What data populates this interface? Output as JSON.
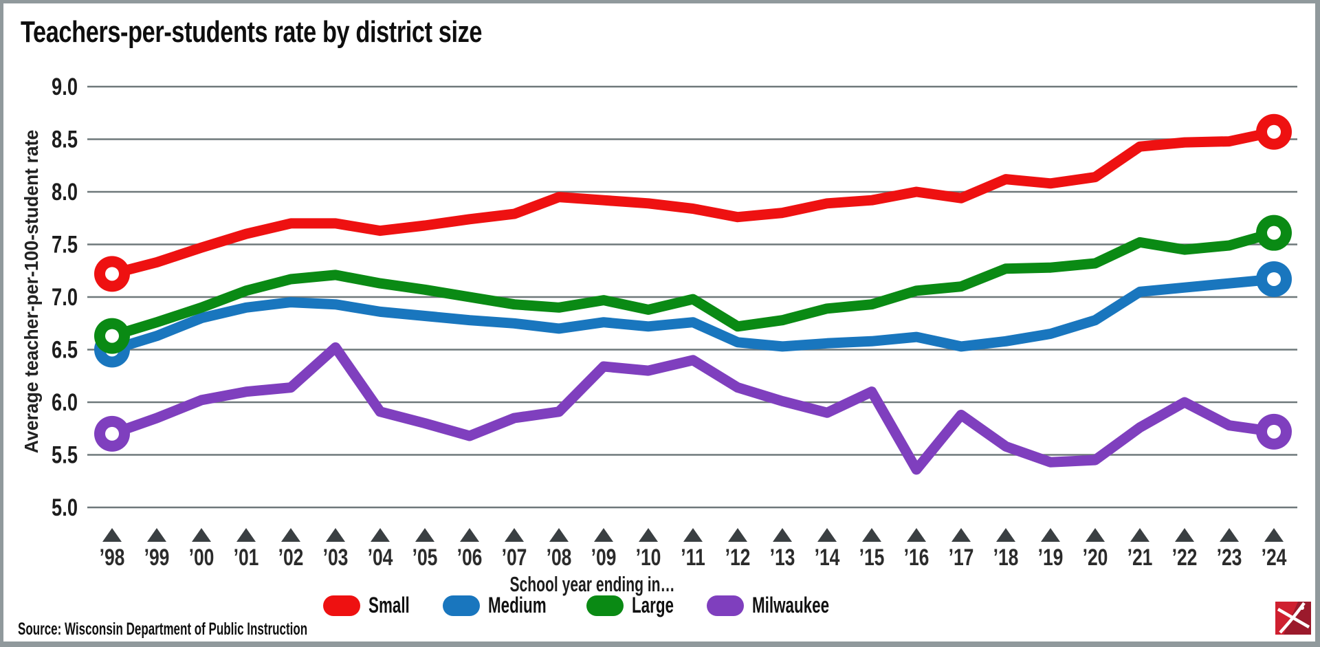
{
  "title": "Teachers-per-students rate by district size",
  "y_axis": {
    "label": "Average teacher-per-100-student rate"
  },
  "x_axis": {
    "title": "School year ending in…"
  },
  "legend": {
    "items": [
      {
        "label": "Small",
        "color": "#ee1111"
      },
      {
        "label": "Medium",
        "color": "#1976be"
      },
      {
        "label": "Large",
        "color": "#0a8a14"
      },
      {
        "label": "Milwaukee",
        "color": "#7f3fbe"
      }
    ]
  },
  "source": "Source: Wisconsin Department of Public Instruction",
  "logo": {
    "name": "pickaxe-logo",
    "bg": "#cf2030",
    "dark": "#9b1a2c",
    "pick": "#ffffff"
  },
  "colors": {
    "grid": "#6e787a",
    "axis_text": "#1d1d1d",
    "year_text": "#2b2b2b",
    "triangle": "#3a3f42",
    "frame": "#90999c",
    "background": "#ffffff"
  },
  "chart_data": {
    "type": "line",
    "title": "Teachers-per-students rate by district size",
    "xlabel": "School year ending in…",
    "ylabel": "Average teacher-per-100-student rate",
    "ylim": [
      5.0,
      9.0
    ],
    "grid": true,
    "legend_position": "bottom",
    "y_ticks": [
      "9.0",
      "8.5",
      "8.0",
      "7.5",
      "7.0",
      "6.5",
      "6.0",
      "5.5",
      "5.0"
    ],
    "categories": [
      "’98",
      "’99",
      "’00",
      "’01",
      "’02",
      "’03",
      "’04",
      "’05",
      "’06",
      "’07",
      "’08",
      "’09",
      "’10",
      "’11",
      "’12",
      "’13",
      "’14",
      "’15",
      "’16",
      "’17",
      "’18",
      "’19",
      "’20",
      "’21",
      "’22",
      "’23",
      "’24"
    ],
    "series": [
      {
        "name": "Small",
        "color": "#ee1111",
        "values": [
          7.22,
          7.33,
          7.47,
          7.6,
          7.7,
          7.7,
          7.63,
          7.68,
          7.74,
          7.79,
          7.95,
          7.92,
          7.89,
          7.84,
          7.76,
          7.8,
          7.89,
          7.92,
          8.0,
          7.94,
          8.12,
          8.08,
          8.14,
          8.43,
          8.47,
          8.48,
          8.57
        ]
      },
      {
        "name": "Medium",
        "color": "#1976be",
        "values": [
          6.5,
          6.63,
          6.8,
          6.9,
          6.95,
          6.93,
          6.86,
          6.82,
          6.78,
          6.75,
          6.7,
          6.76,
          6.72,
          6.76,
          6.57,
          6.53,
          6.56,
          6.58,
          6.62,
          6.53,
          6.58,
          6.65,
          6.78,
          7.05,
          7.09,
          7.13,
          7.17
        ]
      },
      {
        "name": "Large",
        "color": "#0a8a14",
        "values": [
          6.63,
          6.76,
          6.9,
          7.06,
          7.17,
          7.21,
          7.13,
          7.07,
          7.0,
          6.93,
          6.9,
          6.97,
          6.88,
          6.98,
          6.72,
          6.78,
          6.89,
          6.93,
          7.06,
          7.1,
          7.27,
          7.28,
          7.32,
          7.52,
          7.45,
          7.49,
          7.61
        ]
      },
      {
        "name": "Milwaukee",
        "color": "#7f3fbe",
        "values": [
          5.7,
          5.85,
          6.02,
          6.1,
          6.14,
          6.52,
          5.91,
          5.8,
          5.68,
          5.85,
          5.91,
          6.34,
          6.3,
          6.4,
          6.14,
          6.01,
          5.9,
          6.1,
          5.36,
          5.88,
          5.58,
          5.43,
          5.45,
          5.76,
          6.0,
          5.78,
          5.72
        ]
      }
    ]
  }
}
